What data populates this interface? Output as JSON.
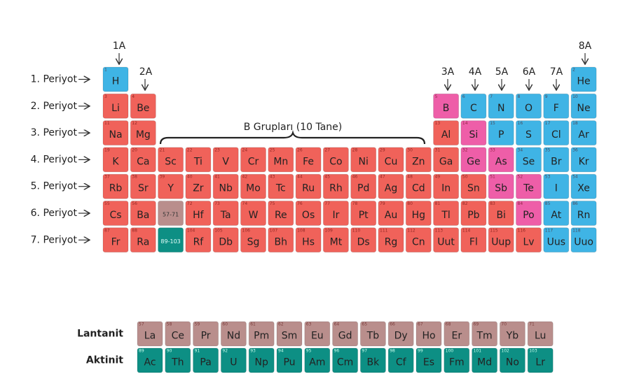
{
  "header": {
    "groups": [
      "1A",
      "2A",
      "3A",
      "4A",
      "5A",
      "6A",
      "7A",
      "8A"
    ],
    "b_groups": "B Grupları (10 Tane)"
  },
  "periods": [
    {
      "label": "1. Periyot",
      "left": [
        {
          "n": 1,
          "s": "H",
          "color": "#3fb4e5"
        }
      ],
      "right": [
        {
          "n": 2,
          "s": "He",
          "color": "#3fb4e5"
        }
      ]
    },
    {
      "label": "2. Periyot",
      "left": [
        {
          "n": 3,
          "s": "Li",
          "color": "#f0625a"
        },
        {
          "n": 4,
          "s": "Be",
          "color": "#f0625a"
        }
      ],
      "right": [
        {
          "n": 5,
          "s": "B",
          "color": "#ee5ea8"
        },
        {
          "n": 6,
          "s": "C",
          "color": "#3fb4e5"
        },
        {
          "n": 7,
          "s": "N",
          "color": "#3fb4e5"
        },
        {
          "n": 8,
          "s": "O",
          "color": "#3fb4e5"
        },
        {
          "n": 9,
          "s": "F",
          "color": "#3fb4e5"
        },
        {
          "n": 10,
          "s": "Ne",
          "color": "#3fb4e5"
        }
      ]
    },
    {
      "label": "3. Periyot",
      "left": [
        {
          "n": 11,
          "s": "Na",
          "color": "#f0625a"
        },
        {
          "n": 12,
          "s": "Mg",
          "color": "#f0625a"
        }
      ],
      "right": [
        {
          "n": 13,
          "s": "Al",
          "color": "#f0625a"
        },
        {
          "n": 14,
          "s": "Si",
          "color": "#ee5ea8"
        },
        {
          "n": 15,
          "s": "P",
          "color": "#3fb4e5"
        },
        {
          "n": 16,
          "s": "S",
          "color": "#3fb4e5"
        },
        {
          "n": 17,
          "s": "Cl",
          "color": "#3fb4e5"
        },
        {
          "n": 18,
          "s": "Ar",
          "color": "#3fb4e5"
        }
      ]
    },
    {
      "label": "4. Periyot",
      "left": [
        {
          "n": 19,
          "s": "K",
          "color": "#f0625a"
        },
        {
          "n": 20,
          "s": "Ca",
          "color": "#f0625a"
        }
      ],
      "middle": [
        {
          "n": 21,
          "s": "Sc",
          "color": "#f0625a"
        },
        {
          "n": 22,
          "s": "Ti",
          "color": "#f0625a"
        },
        {
          "n": 23,
          "s": "V",
          "color": "#f0625a"
        },
        {
          "n": 24,
          "s": "Cr",
          "color": "#f0625a"
        },
        {
          "n": 25,
          "s": "Mn",
          "color": "#f0625a"
        },
        {
          "n": 26,
          "s": "Fe",
          "color": "#f0625a"
        },
        {
          "n": 27,
          "s": "Co",
          "color": "#f0625a"
        },
        {
          "n": 28,
          "s": "Ni",
          "color": "#f0625a"
        },
        {
          "n": 29,
          "s": "Cu",
          "color": "#f0625a"
        },
        {
          "n": 30,
          "s": "Zn",
          "color": "#f0625a"
        }
      ],
      "right": [
        {
          "n": 31,
          "s": "Ga",
          "color": "#f0625a"
        },
        {
          "n": 32,
          "s": "Ge",
          "color": "#ee5ea8"
        },
        {
          "n": 33,
          "s": "As",
          "color": "#ee5ea8"
        },
        {
          "n": 34,
          "s": "Se",
          "color": "#3fb4e5"
        },
        {
          "n": 35,
          "s": "Br",
          "color": "#3fb4e5"
        },
        {
          "n": 36,
          "s": "Kr",
          "color": "#3fb4e5"
        }
      ]
    },
    {
      "label": "5. Periyot",
      "left": [
        {
          "n": 37,
          "s": "Rb",
          "color": "#f0625a"
        },
        {
          "n": 38,
          "s": "Sr",
          "color": "#f0625a"
        }
      ],
      "middle": [
        {
          "n": 39,
          "s": "Y",
          "color": "#f0625a"
        },
        {
          "n": 40,
          "s": "Zr",
          "color": "#f0625a"
        },
        {
          "n": 41,
          "s": "Nb",
          "color": "#f0625a"
        },
        {
          "n": 42,
          "s": "Mo",
          "color": "#f0625a"
        },
        {
          "n": 43,
          "s": "Tc",
          "color": "#f0625a"
        },
        {
          "n": 44,
          "s": "Ru",
          "color": "#f0625a"
        },
        {
          "n": 45,
          "s": "Rh",
          "color": "#f0625a"
        },
        {
          "n": 46,
          "s": "Pd",
          "color": "#f0625a"
        },
        {
          "n": 47,
          "s": "Ag",
          "color": "#f0625a"
        },
        {
          "n": 48,
          "s": "Cd",
          "color": "#f0625a"
        }
      ],
      "right": [
        {
          "n": 49,
          "s": "In",
          "color": "#f0625a"
        },
        {
          "n": 50,
          "s": "Sn",
          "color": "#f0625a"
        },
        {
          "n": 51,
          "s": "Sb",
          "color": "#ee5ea8"
        },
        {
          "n": 52,
          "s": "Te",
          "color": "#ee5ea8"
        },
        {
          "n": 53,
          "s": "I",
          "color": "#3fb4e5"
        },
        {
          "n": 54,
          "s": "Xe",
          "color": "#3fb4e5"
        }
      ]
    },
    {
      "label": "6. Periyot",
      "left": [
        {
          "n": 55,
          "s": "Cs",
          "color": "#f0625a"
        },
        {
          "n": 56,
          "s": "Ba",
          "color": "#f0625a"
        }
      ],
      "middle": [
        {
          "s": "57-71",
          "color": "#b98e8c"
        },
        {
          "n": 72,
          "s": "Hf",
          "color": "#f0625a"
        },
        {
          "n": 73,
          "s": "Ta",
          "color": "#f0625a"
        },
        {
          "n": 74,
          "s": "W",
          "color": "#f0625a"
        },
        {
          "n": 75,
          "s": "Re",
          "color": "#f0625a"
        },
        {
          "n": 76,
          "s": "Os",
          "color": "#f0625a"
        },
        {
          "n": 77,
          "s": "Ir",
          "color": "#f0625a"
        },
        {
          "n": 78,
          "s": "Pt",
          "color": "#f0625a"
        },
        {
          "n": 79,
          "s": "Au",
          "color": "#f0625a"
        },
        {
          "n": 80,
          "s": "Hg",
          "color": "#f0625a"
        }
      ],
      "right": [
        {
          "n": 81,
          "s": "Tl",
          "color": "#f0625a"
        },
        {
          "n": 82,
          "s": "Pb",
          "color": "#f0625a"
        },
        {
          "n": 83,
          "s": "Bi",
          "color": "#f0625a"
        },
        {
          "n": 84,
          "s": "Po",
          "color": "#ee5ea8"
        },
        {
          "n": 85,
          "s": "At",
          "color": "#3fb4e5"
        },
        {
          "n": 86,
          "s": "Rn",
          "color": "#3fb4e5"
        }
      ]
    },
    {
      "label": "7. Periyot",
      "left": [
        {
          "n": 87,
          "s": "Fr",
          "color": "#f0625a"
        },
        {
          "n": 88,
          "s": "Ra",
          "color": "#f0625a"
        }
      ],
      "middle": [
        {
          "s": "89-103",
          "color": "#0d8f84"
        },
        {
          "n": 104,
          "s": "Rf",
          "color": "#f0625a"
        },
        {
          "n": 105,
          "s": "Db",
          "color": "#f0625a"
        },
        {
          "n": 106,
          "s": "Sg",
          "color": "#f0625a"
        },
        {
          "n": 107,
          "s": "Bh",
          "color": "#f0625a"
        },
        {
          "n": 108,
          "s": "Hs",
          "color": "#f0625a"
        },
        {
          "n": 109,
          "s": "Mt",
          "color": "#f0625a"
        },
        {
          "n": 110,
          "s": "Ds",
          "color": "#f0625a"
        },
        {
          "n": 111,
          "s": "Rg",
          "color": "#f0625a"
        },
        {
          "n": 112,
          "s": "Cn",
          "color": "#f0625a"
        }
      ],
      "right": [
        {
          "n": 113,
          "s": "Uut",
          "color": "#f0625a"
        },
        {
          "n": 114,
          "s": "Fl",
          "color": "#f0625a"
        },
        {
          "n": 115,
          "s": "Uup",
          "color": "#f0625a"
        },
        {
          "n": 116,
          "s": "Lv",
          "color": "#f0625a"
        },
        {
          "n": 117,
          "s": "Uus",
          "color": "#3fb4e5"
        },
        {
          "n": 118,
          "s": "Uuo",
          "color": "#3fb4e5"
        }
      ]
    }
  ],
  "f_block": [
    {
      "label": "Lantanit",
      "color": "#b98e8c",
      "elements": [
        {
          "n": 57,
          "s": "La"
        },
        {
          "n": 58,
          "s": "Ce"
        },
        {
          "n": 59,
          "s": "Pr"
        },
        {
          "n": 60,
          "s": "Nd"
        },
        {
          "n": 61,
          "s": "Pm"
        },
        {
          "n": 62,
          "s": "Sm"
        },
        {
          "n": 63,
          "s": "Eu"
        },
        {
          "n": 64,
          "s": "Gd"
        },
        {
          "n": 65,
          "s": "Tb"
        },
        {
          "n": 66,
          "s": "Dy"
        },
        {
          "n": 67,
          "s": "Ho"
        },
        {
          "n": 68,
          "s": "Er"
        },
        {
          "n": 69,
          "s": "Tm"
        },
        {
          "n": 70,
          "s": "Yb"
        },
        {
          "n": 71,
          "s": "Lu"
        }
      ]
    },
    {
      "label": "Aktinit",
      "color": "#0d8f84",
      "elements": [
        {
          "n": 89,
          "s": "Ac"
        },
        {
          "n": 90,
          "s": "Th"
        },
        {
          "n": 91,
          "s": "Pa"
        },
        {
          "n": 92,
          "s": "U"
        },
        {
          "n": 93,
          "s": "Np"
        },
        {
          "n": 94,
          "s": "Pu"
        },
        {
          "n": 95,
          "s": "Am"
        },
        {
          "n": 96,
          "s": "Cm"
        },
        {
          "n": 97,
          "s": "Bk"
        },
        {
          "n": 98,
          "s": "Cf"
        },
        {
          "n": 99,
          "s": "Es"
        },
        {
          "n": 100,
          "s": "Fm"
        },
        {
          "n": 101,
          "s": "Md"
        },
        {
          "n": 102,
          "s": "No"
        },
        {
          "n": 103,
          "s": "Lr"
        }
      ]
    }
  ]
}
